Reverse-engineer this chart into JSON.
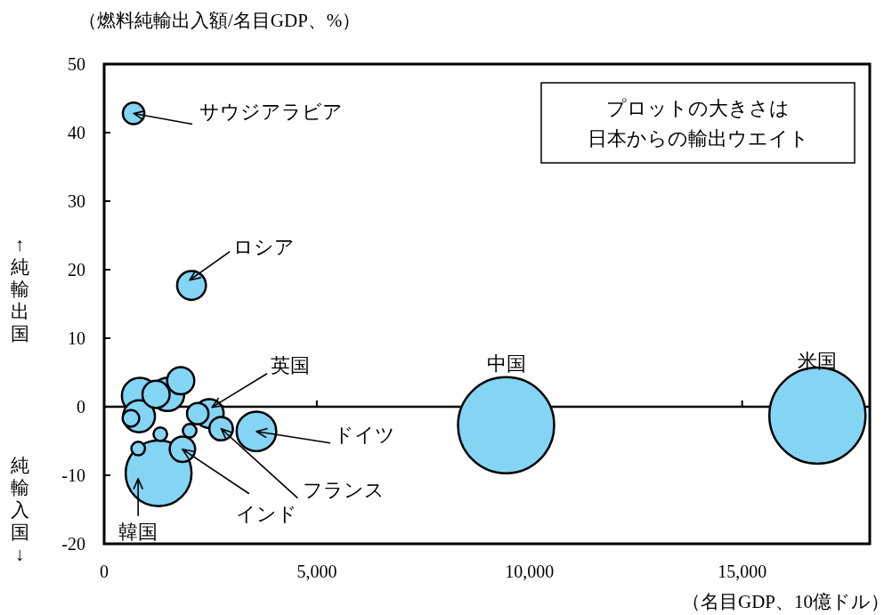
{
  "chart_data": {
    "type": "bubble",
    "ylabel": "（燃料純輸出入額/名目GDP、%）",
    "xlabel": "（名目GDP、10億ドル）",
    "xlim": [
      0,
      18000
    ],
    "ylim": [
      -20,
      50
    ],
    "xticks": [
      0,
      {
        "value": 5000,
        "label": "5,000"
      },
      {
        "value": 10000,
        "label": "10,000"
      },
      {
        "value": 15000,
        "label": "15,000"
      }
    ],
    "yticks": [
      -20,
      -10,
      0,
      10,
      20,
      30,
      40,
      50
    ],
    "grid": false,
    "marker": "circle",
    "series": [
      {
        "color": "#84d4f4",
        "x": [
          692,
          2054,
          9450,
          16770,
          3580,
          1280,
          840,
          820,
          630,
          1490,
          1220,
          1800,
          2470,
          2200,
          2750,
          2010,
          1320,
          800,
          1840
        ],
        "values": [
          42.8,
          17.7,
          -2.7,
          -1.3,
          -3.6,
          -9.7,
          1.6,
          -1.4,
          -1.7,
          1.8,
          1.8,
          3.8,
          -1.0,
          -1.0,
          -3.2,
          -3.5,
          -4.0,
          -6.1,
          -6.2
        ],
        "sizes": [
          0.05,
          0.09,
          1,
          1,
          0.17,
          0.47,
          0.14,
          0.11,
          0.03,
          0.12,
          0.08,
          0.08,
          0.09,
          0.05,
          0.06,
          0.02,
          0.02,
          0.02,
          0.07
        ]
      }
    ],
    "ref_lines": [
      {
        "axis": "y",
        "value": 0
      }
    ],
    "annotations": [
      {
        "text": "サウジアラビア",
        "x": 692,
        "y": 42.8
      },
      {
        "text": "ロシア",
        "x": 2054,
        "y": 17.7
      },
      {
        "text": "英国",
        "x": 2470,
        "y": -1.0
      },
      {
        "text": "ドイツ",
        "x": 3580,
        "y": -3.6
      },
      {
        "text": "フランス",
        "x": 2750,
        "y": -3.2
      },
      {
        "text": "インド",
        "x": 1840,
        "y": -6.2
      },
      {
        "text": "韓国",
        "x": 1280,
        "y": -9.7
      },
      {
        "text": "中国",
        "x": 9450,
        "y": -2.7
      },
      {
        "text": "米国",
        "x": 16770,
        "y": -1.3
      },
      "プロットの大きさは日本からの輸出ウエイト",
      "↑純輸出国",
      "純輸入国↓"
    ]
  }
}
